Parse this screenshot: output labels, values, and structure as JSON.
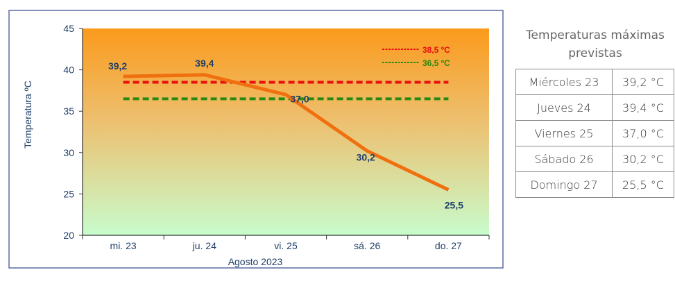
{
  "chart_data": {
    "type": "line",
    "xlabel": "Agosto  2023",
    "ylabel": "Temperatura ºC",
    "categories": [
      "mi. 23",
      "ju. 24",
      "vi. 25",
      "sá. 26",
      "do. 27"
    ],
    "series": [
      {
        "values": [
          39.2,
          39.4,
          37.0,
          30.2,
          25.5
        ],
        "labels": [
          "39,2",
          "39,4",
          "37,0",
          "30,2",
          "25,5"
        ],
        "color": "#f07010"
      }
    ],
    "thresholds": [
      {
        "name": "38,5 ºC",
        "value": 38.5,
        "color": "#e81010"
      },
      {
        "name": "36,5 ºC",
        "value": 36.5,
        "color": "#2a8a10"
      }
    ],
    "ylim": [
      20,
      45
    ],
    "yticks": [
      "20",
      "25",
      "30",
      "35",
      "40",
      "45"
    ],
    "legend": "top-right",
    "grid": false,
    "background": {
      "top": "#fb9a1c",
      "bottom": "#c8fccc"
    }
  },
  "table": {
    "title": "Temperaturas máximas previstas",
    "rows": [
      {
        "day": "Miércoles 23",
        "temp": "39,2 °C"
      },
      {
        "day": "Jueves 24",
        "temp": "39,4 °C"
      },
      {
        "day": "Viernes 25",
        "temp": "37,0 °C"
      },
      {
        "day": "Sábado 26",
        "temp": "30,2 °C"
      },
      {
        "day": "Domingo 27",
        "temp": "25,5 °C"
      }
    ]
  }
}
